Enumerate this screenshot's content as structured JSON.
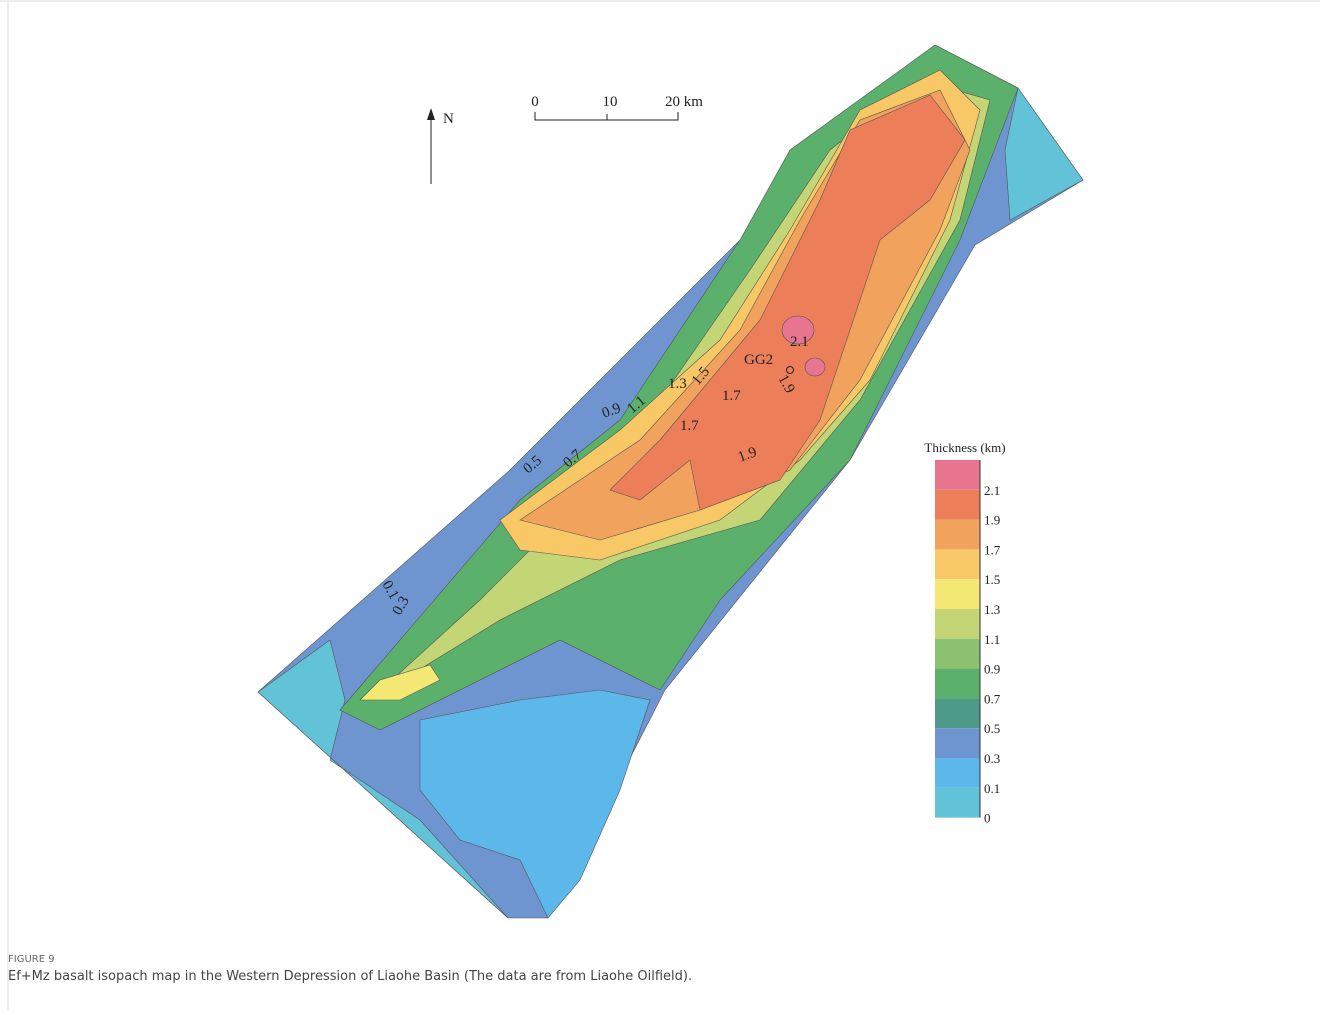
{
  "map": {
    "north": "N",
    "scale": [
      "0",
      "10",
      "20 km"
    ],
    "contour_labels": [
      "0.5",
      "0.7",
      "0.9",
      "1.1",
      "1.3",
      "1.5",
      "1.7",
      "1.7",
      "1.9",
      "1.9",
      "2.1",
      "0.1",
      "0.3"
    ],
    "well": "GG2",
    "legend": {
      "title": "Thickness (km)",
      "items": [
        {
          "label": "2.1",
          "color": "#e8748f"
        },
        {
          "label": "1.9",
          "color": "#ec7f5a"
        },
        {
          "label": "1.7",
          "color": "#f1a35d"
        },
        {
          "label": "1.5",
          "color": "#f8c866"
        },
        {
          "label": "1.3",
          "color": "#f3e874"
        },
        {
          "label": "1.1",
          "color": "#c3d574"
        },
        {
          "label": "0.9",
          "color": "#8bc16f"
        },
        {
          "label": "0.7",
          "color": "#5bb16b"
        },
        {
          "label": "0.5",
          "color": "#4e9b8a"
        },
        {
          "label": "0.3",
          "color": "#6f95d0"
        },
        {
          "label": "0.1",
          "color": "#5cb8ea"
        },
        {
          "label": "0",
          "color": "#62c2d8"
        }
      ]
    }
  },
  "caption": {
    "label": "FIGURE 9",
    "text": "Ef+Mz basalt isopach map in the Western Depression of Liaohe Basin (The data are from Liaohe Oilfield)."
  }
}
